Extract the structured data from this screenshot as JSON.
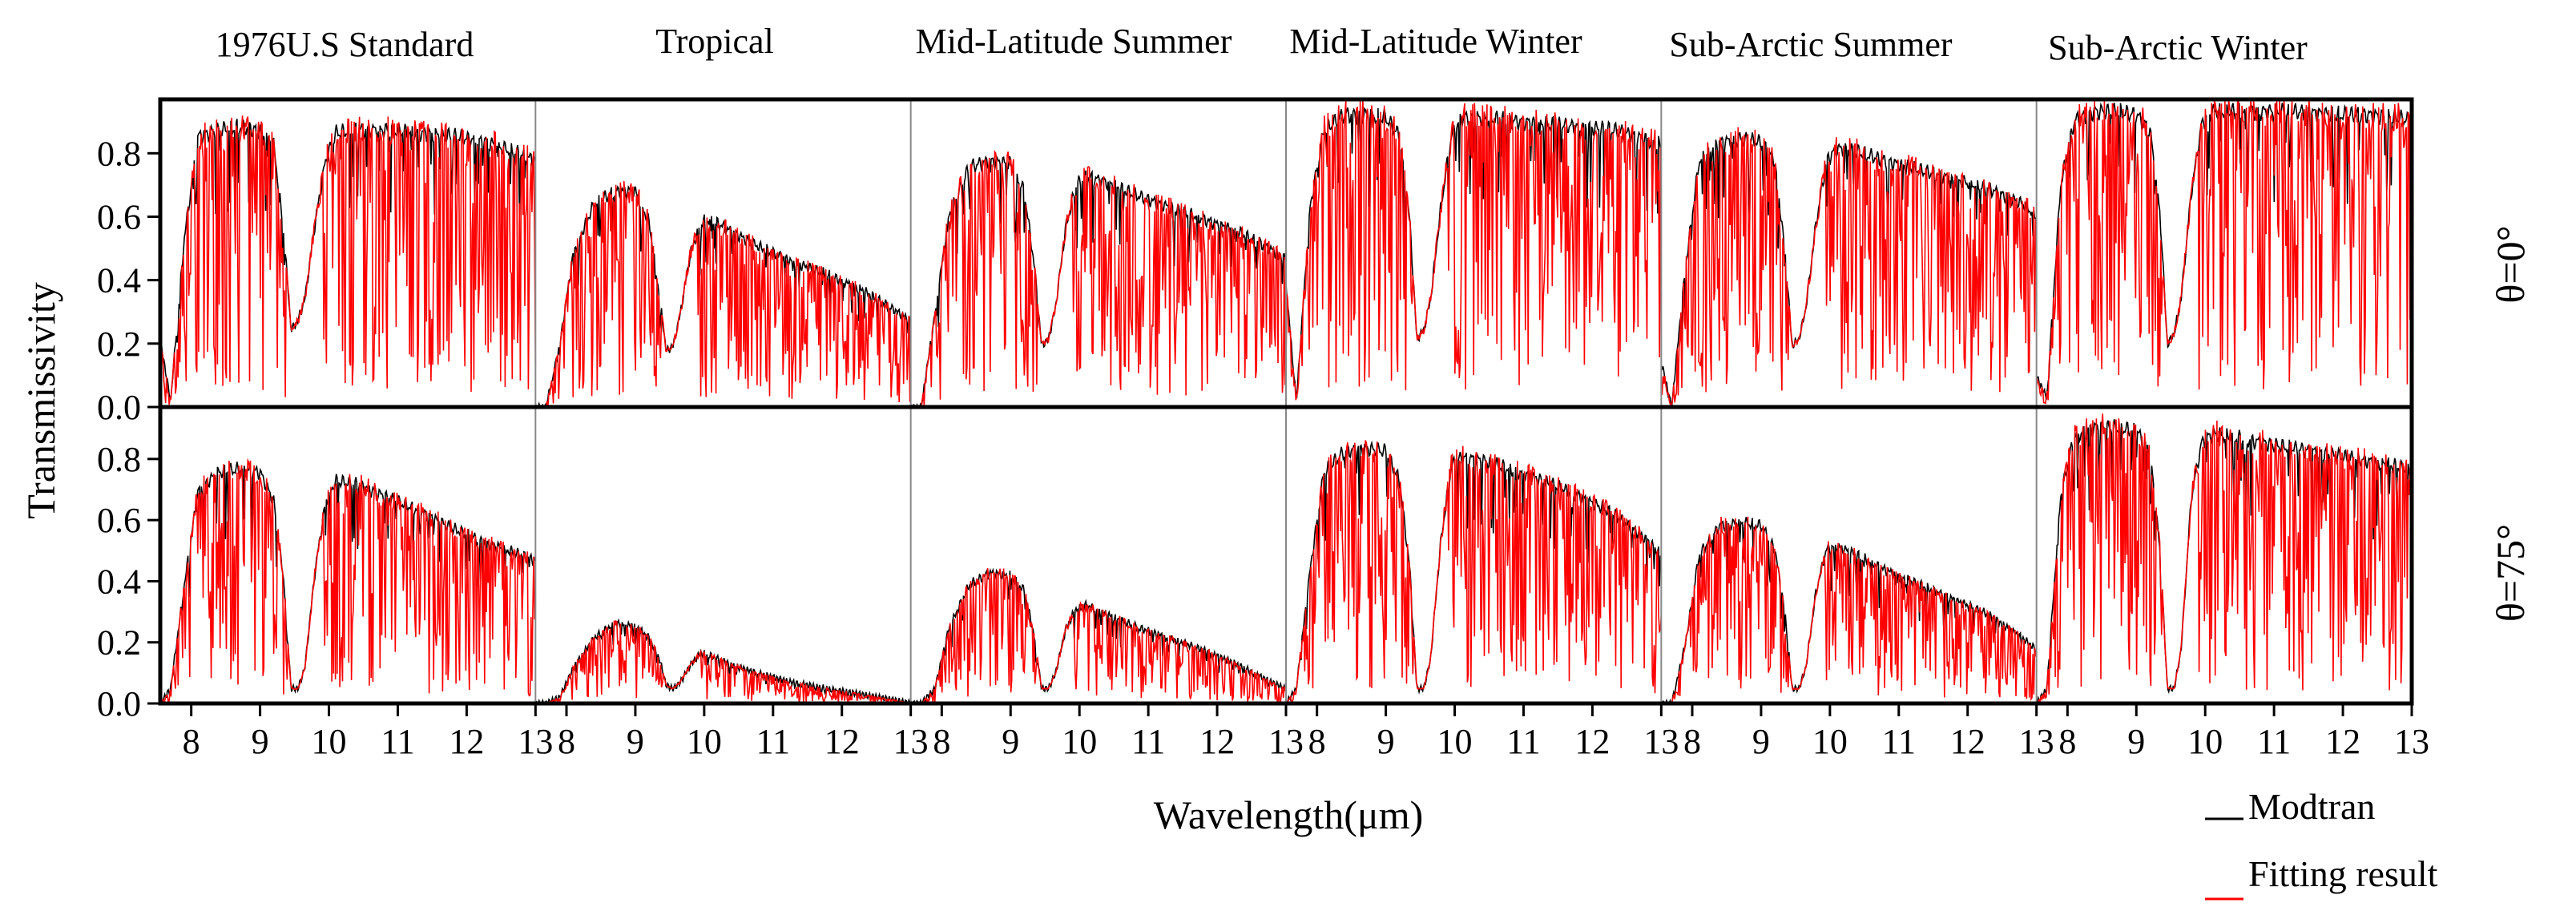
{
  "chart_data": {
    "type": "line",
    "ylabel": "Transmissivity",
    "xlabel": "Wavelength(μm)",
    "xlim": [
      7.55,
      13.0
    ],
    "ylim": [
      0.0,
      0.97
    ],
    "x_ticks": [
      8,
      9,
      10,
      11,
      12,
      13
    ],
    "x_tick_labels": [
      "8",
      "9",
      "10",
      "11",
      "12",
      "13"
    ],
    "y_ticks": [
      0.0,
      0.2,
      0.4,
      0.6,
      0.8
    ],
    "y_tick_labels": [
      "0.0",
      "0.2",
      "0.4",
      "0.6",
      "0.8"
    ],
    "columns": [
      "1976U.S Standard",
      "Tropical",
      "Mid-Latitude Summer",
      "Mid-Latitude Winter",
      "Sub-Arctic Summer",
      "Sub-Arctic Winter"
    ],
    "rows": [
      "θ=0°",
      "θ=75°"
    ],
    "legend": [
      {
        "name": "Modtran",
        "color": "#000000"
      },
      {
        "name": "Fitting result",
        "color": "#ff0000"
      }
    ],
    "envelope_x": [
      7.55,
      7.7,
      7.9,
      8.1,
      8.4,
      8.7,
      9.0,
      9.2,
      9.35,
      9.45,
      9.55,
      9.65,
      9.8,
      9.95,
      10.1,
      10.4,
      10.8,
      11.3,
      11.8,
      12.3,
      12.8,
      13.0
    ],
    "panels": [
      {
        "column": "1976U.S Standard",
        "row": "θ=0°",
        "envelope": [
          0.22,
          0.02,
          0.55,
          0.88,
          0.9,
          0.91,
          0.9,
          0.85,
          0.55,
          0.25,
          0.28,
          0.35,
          0.6,
          0.8,
          0.89,
          0.9,
          0.9,
          0.89,
          0.88,
          0.86,
          0.82,
          0.8
        ]
      },
      {
        "column": "Tropical",
        "row": "θ=0°",
        "envelope": [
          0.0,
          0.0,
          0.2,
          0.5,
          0.66,
          0.7,
          0.7,
          0.6,
          0.36,
          0.18,
          0.2,
          0.3,
          0.5,
          0.6,
          0.61,
          0.57,
          0.52,
          0.47,
          0.43,
          0.38,
          0.31,
          0.28
        ]
      },
      {
        "column": "Mid-Latitude Summer",
        "row": "θ=0°",
        "envelope": [
          0.0,
          0.0,
          0.3,
          0.62,
          0.78,
          0.8,
          0.79,
          0.7,
          0.45,
          0.2,
          0.22,
          0.32,
          0.58,
          0.72,
          0.75,
          0.73,
          0.69,
          0.65,
          0.61,
          0.57,
          0.51,
          0.48
        ]
      },
      {
        "column": "Mid-Latitude Winter",
        "row": "θ=0°",
        "envelope": [
          0.4,
          0.02,
          0.65,
          0.9,
          0.95,
          0.95,
          0.94,
          0.88,
          0.6,
          0.22,
          0.25,
          0.35,
          0.65,
          0.88,
          0.94,
          0.94,
          0.93,
          0.92,
          0.91,
          0.9,
          0.87,
          0.85
        ]
      },
      {
        "column": "Sub-Arctic Summer",
        "row": "θ=0°",
        "envelope": [
          0.15,
          0.0,
          0.45,
          0.8,
          0.86,
          0.87,
          0.86,
          0.8,
          0.5,
          0.2,
          0.22,
          0.32,
          0.6,
          0.8,
          0.84,
          0.83,
          0.8,
          0.77,
          0.74,
          0.71,
          0.66,
          0.62
        ]
      },
      {
        "column": "Sub-Arctic Winter",
        "row": "θ=0°",
        "envelope": [
          0.1,
          0.03,
          0.72,
          0.93,
          0.96,
          0.96,
          0.95,
          0.9,
          0.62,
          0.2,
          0.24,
          0.35,
          0.7,
          0.92,
          0.96,
          0.96,
          0.96,
          0.96,
          0.95,
          0.95,
          0.94,
          0.93
        ]
      },
      {
        "column": "1976U.S Standard",
        "row": "θ=75°",
        "envelope": [
          0.0,
          0.05,
          0.4,
          0.72,
          0.78,
          0.79,
          0.78,
          0.68,
          0.4,
          0.05,
          0.05,
          0.12,
          0.45,
          0.68,
          0.75,
          0.74,
          0.7,
          0.65,
          0.59,
          0.54,
          0.5,
          0.48
        ]
      },
      {
        "column": "Tropical",
        "row": "θ=75°",
        "envelope": [
          0.0,
          0.0,
          0.02,
          0.12,
          0.22,
          0.27,
          0.26,
          0.22,
          0.15,
          0.06,
          0.05,
          0.07,
          0.13,
          0.17,
          0.16,
          0.13,
          0.1,
          0.07,
          0.05,
          0.03,
          0.01,
          0.0
        ]
      },
      {
        "column": "Mid-Latitude Summer",
        "row": "θ=75°",
        "envelope": [
          0.0,
          0.0,
          0.05,
          0.25,
          0.4,
          0.44,
          0.43,
          0.38,
          0.22,
          0.05,
          0.05,
          0.1,
          0.25,
          0.32,
          0.33,
          0.3,
          0.26,
          0.22,
          0.18,
          0.13,
          0.07,
          0.05
        ]
      },
      {
        "column": "Mid-Latitude Winter",
        "row": "θ=75°",
        "envelope": [
          0.0,
          0.05,
          0.45,
          0.78,
          0.85,
          0.86,
          0.85,
          0.75,
          0.45,
          0.05,
          0.05,
          0.15,
          0.55,
          0.8,
          0.83,
          0.82,
          0.79,
          0.75,
          0.7,
          0.64,
          0.55,
          0.5
        ]
      },
      {
        "column": "Sub-Arctic Summer",
        "row": "θ=75°",
        "envelope": [
          0.0,
          0.0,
          0.2,
          0.5,
          0.6,
          0.61,
          0.6,
          0.52,
          0.3,
          0.05,
          0.05,
          0.12,
          0.38,
          0.52,
          0.53,
          0.5,
          0.45,
          0.4,
          0.35,
          0.3,
          0.22,
          0.18
        ]
      },
      {
        "column": "Sub-Arctic Winter",
        "row": "θ=75°",
        "envelope": [
          0.0,
          0.05,
          0.7,
          0.9,
          0.93,
          0.93,
          0.92,
          0.85,
          0.5,
          0.05,
          0.05,
          0.18,
          0.7,
          0.88,
          0.91,
          0.9,
          0.88,
          0.86,
          0.84,
          0.82,
          0.8,
          0.78
        ]
      }
    ]
  }
}
